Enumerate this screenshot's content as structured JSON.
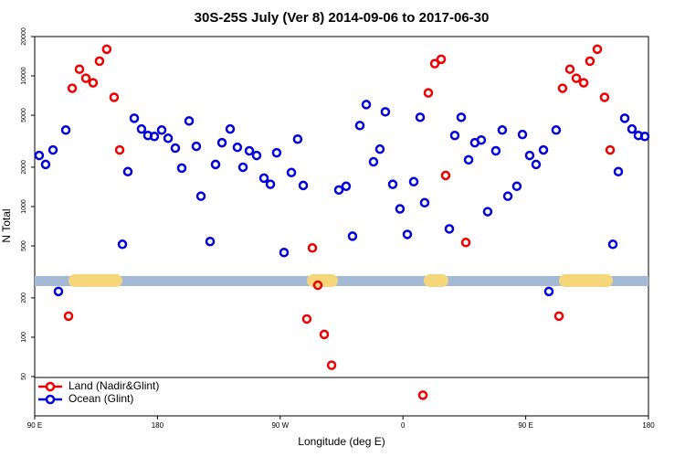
{
  "chart_data": {
    "type": "scatter",
    "title": "30S-25S July (Ver 8)   2014-09-06 to 2017-06-30",
    "x_label": "Longitude (deg E)",
    "y_label": "N Total",
    "log_y": true,
    "legend": "bottom-left",
    "xlim": [
      90,
      540
    ],
    "ylim": [
      25,
      20000
    ],
    "xticks": [
      {
        "value": 90,
        "label": "90 E"
      },
      180,
      {
        "value": 270,
        "label": "90 W"
      },
      {
        "value": 360,
        "label": "0"
      },
      {
        "value": 450,
        "label": "90 E"
      },
      {
        "value": 540,
        "label": "180"
      }
    ],
    "yticks": [
      20000,
      10000,
      5000,
      2000,
      1000,
      500,
      200,
      100,
      50
    ],
    "series": [
      {
        "name": "Land (Nadir&Glint)",
        "color": "#ee0000",
        "x": [
          114.8,
          117.5,
          122.8,
          127.5,
          132.8,
          137.5,
          142.8,
          148.2,
          152.3,
          293.6,
          297.6,
          289.5,
          302.3,
          307.7,
          374.6,
          378.6,
          383.3,
          388.0,
          391.3,
          406.1,
          474.4,
          477.0,
          482.4,
          487.1,
          492.5,
          497.1,
          502.5,
          507.8,
          511.9
        ],
        "values": [
          145,
          8040,
          11250,
          9590,
          8850,
          12970,
          16000,
          6850,
          2710,
          482,
          250,
          138,
          105,
          61,
          36,
          7410,
          12400,
          13400,
          1730,
          531,
          145,
          8040,
          11250,
          9590,
          8850,
          12970,
          16000,
          6850,
          2710
        ]
      },
      {
        "name": "Ocean (Glint)",
        "color": "#0000dd",
        "x": [
          93.3,
          98.0,
          103.4,
          107.4,
          112.8,
          154.3,
          158.3,
          163.0,
          168.3,
          173.0,
          177.7,
          183.1,
          187.8,
          193.1,
          197.8,
          203.2,
          208.5,
          211.9,
          218.6,
          222.6,
          227.3,
          233.3,
          238.6,
          242.7,
          247.4,
          252.7,
          258.1,
          262.8,
          267.4,
          272.8,
          278.2,
          282.8,
          286.9,
          313.0,
          318.3,
          323.0,
          328.4,
          333.1,
          338.4,
          343.1,
          347.1,
          352.5,
          357.8,
          363.2,
          367.9,
          372.6,
          375.9,
          394.0,
          398.0,
          402.7,
          408.1,
          412.7,
          417.4,
          422.1,
          428.1,
          432.8,
          436.9,
          443.5,
          447.6,
          452.9,
          457.6,
          463.0,
          467.0,
          472.3,
          513.9,
          517.9,
          522.6,
          527.9,
          532.6,
          537.3
        ],
        "values": [
          2460,
          2100,
          2710,
          224,
          3850,
          514,
          1850,
          4740,
          3920,
          3500,
          3440,
          3850,
          3330,
          2800,
          1970,
          4520,
          2890,
          1200,
          540,
          2100,
          3080,
          3920,
          2840,
          2000,
          2670,
          2460,
          1650,
          1480,
          2580,
          445,
          1820,
          3280,
          1450,
          1340,
          1430,
          593,
          4170,
          6030,
          2200,
          2750,
          5310,
          1480,
          960,
          612,
          1550,
          4820,
          1070,
          675,
          3500,
          4820,
          2280,
          3080,
          3230,
          914,
          2670,
          3850,
          1200,
          1430,
          3560,
          2460,
          2100,
          2710,
          224,
          3850,
          514,
          1850,
          4740,
          3920,
          3500,
          3440
        ]
      }
    ]
  }
}
